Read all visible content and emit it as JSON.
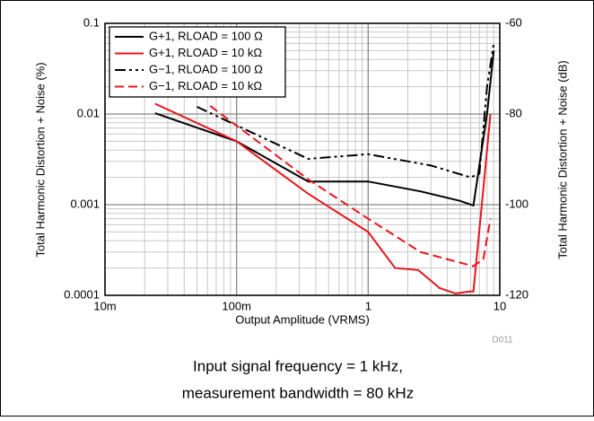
{
  "chart_data": {
    "type": "line",
    "xlabel": "Output Amplitude (VRMS)",
    "ylabel": "Total Harmonic Distortion + Noise (%)",
    "y2label": "Total Harmonic Distortion + Noise (dB)",
    "note": "D011",
    "caption": [
      "Input signal frequency = 1 kHz,",
      "measurement bandwidth = 80 kHz"
    ],
    "xscale": "log",
    "yscale": "log",
    "grid": true,
    "xlim": [
      0.01,
      10
    ],
    "ylim": [
      0.0001,
      0.1
    ],
    "y2lim": [
      -120,
      -60
    ],
    "xticks": [
      {
        "value": 0.01,
        "label": "10m"
      },
      {
        "value": 0.1,
        "label": "100m"
      },
      1,
      10
    ],
    "yticks": [
      0.0001,
      0.001,
      0.01,
      0.1
    ],
    "y2ticks": [
      -120,
      -100,
      -80,
      -60
    ],
    "legend": "upper left",
    "series": [
      {
        "name": "G+1, RLOAD = 100 Ω",
        "color": "#000000",
        "dash": "solid",
        "x": [
          0.024,
          0.1,
          0.35,
          1,
          2.5,
          5,
          6.3,
          8,
          9
        ],
        "values": [
          0.0102,
          0.005,
          0.0018,
          0.0018,
          0.0014,
          0.0011,
          0.00098,
          0.01,
          0.05
        ]
      },
      {
        "name": "G+1, RLOAD = 10 kΩ",
        "color": "#e8141c",
        "dash": "solid",
        "x": [
          0.024,
          0.1,
          0.35,
          1,
          1.6,
          2.4,
          3.5,
          4.6,
          5.9,
          6.3,
          7.5,
          8.5
        ],
        "values": [
          0.013,
          0.005,
          0.00132,
          0.0005,
          0.0002,
          0.00019,
          0.00012,
          0.000105,
          0.00011,
          0.00011,
          0.0015,
          0.01
        ]
      },
      {
        "name": "G−1, RLOAD = 100 Ω",
        "color": "#000000",
        "dash": "dashdot",
        "x": [
          0.05,
          0.35,
          1,
          3,
          6,
          7,
          8,
          9
        ],
        "values": [
          0.012,
          0.0032,
          0.0036,
          0.0027,
          0.002,
          0.0022,
          0.02,
          0.06
        ]
      },
      {
        "name": "G−1, RLOAD = 10 kΩ",
        "color": "#e8141c",
        "dash": "dashed",
        "x": [
          0.063,
          0.35,
          1,
          2.5,
          6.3,
          7.5,
          8.5
        ],
        "values": [
          0.0123,
          0.0019,
          0.0007,
          0.0003,
          0.00021,
          0.00025,
          0.0007
        ]
      }
    ]
  }
}
